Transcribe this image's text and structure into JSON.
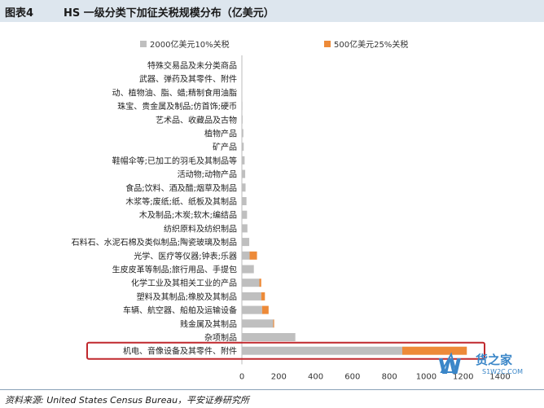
{
  "figure": {
    "label": "图表4",
    "title": "HS 一级分类下加征关税规模分布（亿美元）",
    "source": "资料来源: United States Census Bureau，平安证券研究所"
  },
  "watermark": {
    "text": "货之家",
    "url": "S1W2C.COM"
  },
  "colors": {
    "series1": "#bfbfbf",
    "series2": "#ed8a38",
    "highlight": "#c0282d",
    "title_bg": "#dde6ee"
  },
  "chart_data": {
    "type": "bar",
    "orientation": "horizontal",
    "stacked": true,
    "title": "HS 一级分类下加征关税规模分布（亿美元）",
    "xlim": [
      0,
      1400
    ],
    "xticks": [
      0,
      200,
      400,
      600,
      800,
      1000,
      1200,
      1400
    ],
    "grid": false,
    "legend_position": "top",
    "categories": [
      "特殊交易品及未分类商品",
      "武器、弹药及其零件、附件",
      "动、植物油、脂、蜡;精制食用油脂",
      "珠宝、贵金属及制品;仿首饰;硬币",
      "艺术品、收藏品及古物",
      "植物产品",
      "矿产品",
      "鞋帽伞等;已加工的羽毛及其制品等",
      "活动物;动物产品",
      "食品;饮料、酒及醋;烟草及制品",
      "木浆等;废纸;纸、纸板及其制品",
      "木及制品;木炭;软木;编结品",
      "纺织原料及纺织制品",
      "石料石、水泥石棉及类似制品;陶瓷玻璃及制品",
      "光学、医疗等仪器;钟表;乐器",
      "生皮皮革等制品;旅行用品、手提包",
      "化学工业及其相关工业的产品",
      "塑料及其制品;橡胶及其制品",
      "车辆、航空器、船舶及运输设备",
      "贱金属及其制品",
      "杂项制品",
      "机电、音像设备及其零件、附件"
    ],
    "series": [
      {
        "name": "2000亿美元10%关税",
        "color": "#bfbfbf",
        "values": [
          0,
          0,
          1,
          3,
          4,
          8,
          10,
          15,
          18,
          20,
          25,
          28,
          30,
          40,
          42,
          65,
          95,
          105,
          110,
          170,
          290,
          870
        ]
      },
      {
        "name": "500亿美元25%关税",
        "color": "#ed8a38",
        "values": [
          0,
          0,
          0,
          0,
          0,
          0,
          0,
          0,
          0,
          0,
          0,
          0,
          0,
          0,
          40,
          0,
          10,
          20,
          35,
          5,
          0,
          350
        ]
      }
    ],
    "highlighted_category": "机电、音像设备及其零件、附件"
  }
}
